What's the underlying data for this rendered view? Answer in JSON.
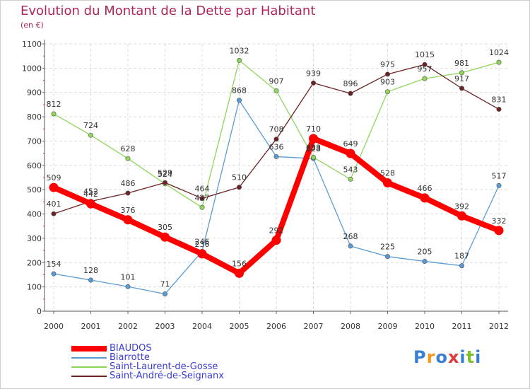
{
  "page": {
    "title": "Evolution du Montant de la Dette par Habitant",
    "subtitle": "(en €)",
    "logo_text": "Proxiti",
    "logo_colors": [
      "#3a7fd6",
      "#f29a1c",
      "#3a7fd6",
      "#e03a3a",
      "#3a7fd6",
      "#7fbf2a",
      "#3a7fd6"
    ]
  },
  "chart_data": {
    "type": "line",
    "title": "Evolution du Montant de la Dette par Habitant",
    "subtitle": "(en €)",
    "xlabel": "",
    "ylabel": "",
    "x": [
      "2000",
      "2001",
      "2002",
      "2003",
      "2004",
      "2005",
      "2006",
      "2007",
      "2008",
      "2009",
      "2010",
      "2011",
      "2012"
    ],
    "ylim": [
      0,
      1100
    ],
    "yticks": [
      0,
      100,
      200,
      300,
      400,
      500,
      600,
      700,
      800,
      900,
      1000,
      1100
    ],
    "grid": true,
    "legend_position": "bottom-left",
    "series": [
      {
        "name": "BIAUDOS",
        "color": "#ff0000",
        "values": [
          509,
          442,
          376,
          305,
          236,
          156,
          292,
          710,
          649,
          528,
          466,
          392,
          332
        ]
      },
      {
        "name": "Biarrotte",
        "color": "#5b9bd5",
        "values": [
          154,
          128,
          101,
          71,
          246,
          868,
          636,
          628,
          268,
          225,
          205,
          187,
          517
        ]
      },
      {
        "name": "Saint-Laurent-de-Gosse",
        "color": "#8fd65a",
        "values": [
          812,
          724,
          628,
          524,
          427,
          1032,
          907,
          633,
          543,
          903,
          957,
          981,
          1024
        ]
      },
      {
        "name": "Saint-André-de-Seignanx",
        "color": "#6b2222",
        "values": [
          401,
          452,
          486,
          529,
          464,
          510,
          708,
          939,
          896,
          975,
          1015,
          917,
          831
        ]
      }
    ]
  }
}
